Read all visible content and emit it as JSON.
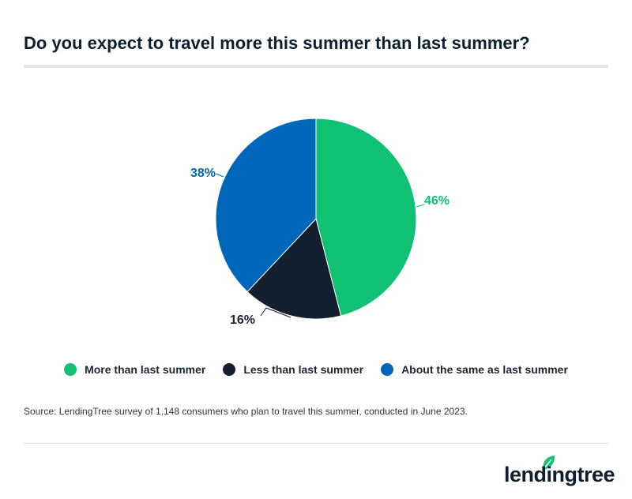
{
  "title": "Do you expect to travel more this summer than last summer?",
  "source": "Source: LendingTree survey of 1,148 consumers who plan to travel this summer, conducted in June 2023.",
  "logo": "lendingtree",
  "chart_data": {
    "type": "pie",
    "title": "Do you expect to travel more this summer than last summer?",
    "categories": [
      "More than last summer",
      "Less than last summer",
      "About the same as last summer"
    ],
    "values": [
      46,
      16,
      38
    ],
    "labels": [
      "46%",
      "16%",
      "38%"
    ],
    "colors": [
      "#10c173",
      "#111f2f",
      "#0066b9"
    ],
    "legend": "bottom"
  }
}
